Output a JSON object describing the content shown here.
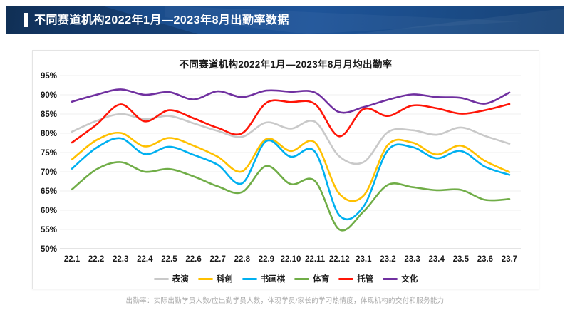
{
  "header": {
    "title": "不同赛道机构2022年1月—2023年8月出勤率数据"
  },
  "footer": {
    "note": "出勤率：实际出勤学员人数/应出勤学员人数，体现学员/家长的学习热情度，体现机构的交付和服务能力"
  },
  "colors": {
    "header_bg": "#1b4e8e",
    "grid": "#efefef",
    "axis": "#c9c9c9",
    "tick_text": "#1a1a1a"
  },
  "chart_data": {
    "type": "line",
    "title": "不同赛道机构2022年1月—2023年8月月均出勤率",
    "categories": [
      "22.1",
      "22.2",
      "22.3",
      "22.4",
      "22.5",
      "22.6",
      "22.7",
      "22.8",
      "22.9",
      "22.10",
      "22.11",
      "22.12",
      "23.1",
      "23.2",
      "23.3",
      "23.4",
      "23.5",
      "23.6",
      "23.7"
    ],
    "series": [
      {
        "name": "表演",
        "color": "#c9c9c9",
        "values": [
          80.4,
          83.2,
          85.0,
          83.7,
          84.5,
          82.6,
          80.6,
          79.1,
          82.8,
          81.2,
          83.0,
          74.0,
          72.5,
          80.3,
          80.8,
          79.6,
          81.5,
          79.3,
          77.3
        ]
      },
      {
        "name": "科创",
        "color": "#ffc000",
        "values": [
          73.2,
          78.2,
          80.1,
          76.6,
          78.8,
          76.8,
          73.9,
          70.1,
          78.5,
          75.4,
          77.6,
          64.3,
          63.8,
          77.0,
          77.6,
          74.5,
          76.8,
          72.8,
          69.9
        ]
      },
      {
        "name": "书画棋",
        "color": "#00b0f0",
        "values": [
          70.8,
          76.2,
          78.7,
          74.6,
          76.5,
          74.4,
          71.8,
          67.0,
          78.0,
          73.9,
          75.2,
          58.7,
          61.0,
          75.6,
          76.4,
          73.5,
          75.4,
          71.3,
          69.2
        ]
      },
      {
        "name": "体育",
        "color": "#70ad47",
        "values": [
          65.4,
          70.6,
          72.5,
          70.0,
          70.7,
          68.8,
          66.2,
          64.7,
          71.5,
          66.8,
          67.6,
          55.0,
          59.7,
          66.6,
          66.0,
          65.2,
          65.3,
          62.7,
          62.9
        ]
      },
      {
        "name": "托管",
        "color": "#ff1507",
        "values": [
          77.6,
          82.2,
          87.5,
          83.1,
          86.0,
          83.9,
          81.4,
          80.0,
          87.9,
          88.1,
          87.6,
          79.2,
          86.3,
          84.5,
          87.2,
          86.5,
          85.1,
          86.0,
          87.6
        ]
      },
      {
        "name": "文化",
        "color": "#7030a0",
        "values": [
          88.2,
          90.0,
          91.4,
          90.0,
          90.7,
          88.8,
          90.9,
          89.4,
          91.1,
          90.8,
          90.6,
          85.5,
          86.8,
          88.7,
          90.1,
          89.4,
          89.2,
          87.7,
          90.6
        ]
      }
    ],
    "ylim": [
      50,
      95
    ],
    "ytick_step": 5,
    "ytick_suffix": "%",
    "grid": true,
    "legend_position": "bottom"
  }
}
